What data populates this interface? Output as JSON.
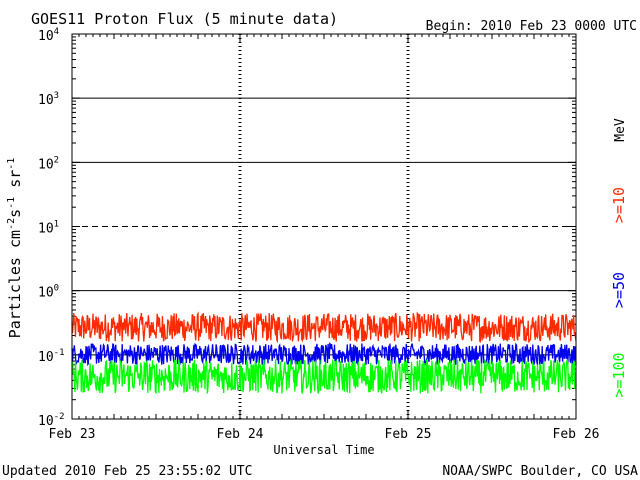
{
  "chart_data": {
    "type": "line",
    "title": "GOES11 Proton Flux (5 minute data)",
    "begin_label": "Begin: 2010 Feb 23 0000 UTC",
    "xlabel": "Universal Time",
    "ylabel": "Particles cm^-2 s^-1 sr^-1",
    "ylabel_parts": {
      "main": "Particles cm",
      "sup1": "-2",
      "mid1": "s",
      "sup2": "-1",
      "mid2": " sr",
      "sup3": "-1"
    },
    "x_ticks": [
      "Feb 23",
      "Feb 24",
      "Feb 25",
      "Feb 26"
    ],
    "xlim_days": [
      0,
      3
    ],
    "yscale": "log",
    "ylim": [
      0.01,
      10000
    ],
    "y_ticks": [
      {
        "base": "10",
        "exp": "4"
      },
      {
        "base": "10",
        "exp": "3"
      },
      {
        "base": "10",
        "exp": "2"
      },
      {
        "base": "10",
        "exp": "1"
      },
      {
        "base": "10",
        "exp": "0"
      },
      {
        "base": "10",
        "exp": "-1"
      },
      {
        "base": "10",
        "exp": "-2"
      }
    ],
    "threshold_lines": [
      {
        "value": 1000,
        "style": "solid"
      },
      {
        "value": 100,
        "style": "solid"
      },
      {
        "value": 10,
        "style": "dashed"
      },
      {
        "value": 1,
        "style": "solid"
      },
      {
        "value": 0.1,
        "style": "solid"
      }
    ],
    "legend_unit": "MeV",
    "series": [
      {
        "name": ">=10",
        "color": "#ff2a00",
        "level_range": [
          0.16,
          0.45
        ]
      },
      {
        "name": ">=50",
        "color": "#0000ee",
        "level_range": [
          0.07,
          0.15
        ]
      },
      {
        "name": ">=100",
        "color": "#00ff00",
        "level_range": [
          0.025,
          0.085
        ]
      }
    ]
  },
  "footer": {
    "updated": "Updated 2010 Feb 25 23:55:02 UTC",
    "source": "NOAA/SWPC Boulder, CO USA"
  }
}
